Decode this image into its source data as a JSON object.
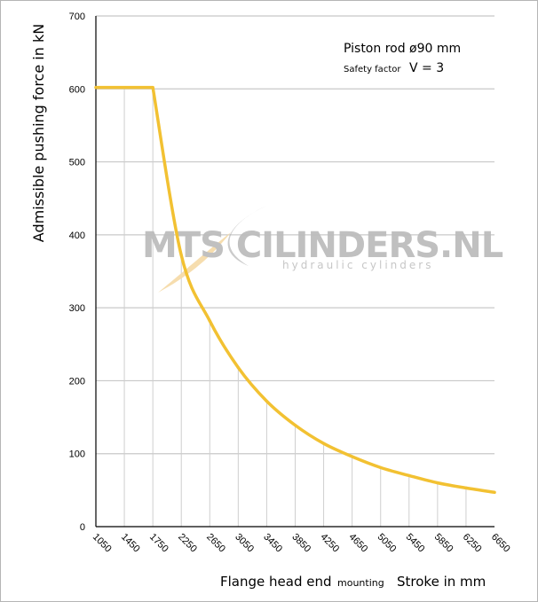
{
  "chart_data": {
    "type": "line",
    "ylabel": "Admissible  pushing  force in kN",
    "xlabel_main": "Flange head end",
    "xlabel_small": "mounting",
    "xlabel_right": "Stroke in mm",
    "annotation_title": "Piston rod ø90 mm",
    "annotation_factor_label": "Safety factor",
    "annotation_factor_value": "V = 3",
    "watermark": "MTS CILINDERS.NL",
    "watermark_sub": "hydraulic  cylinders",
    "ylim": [
      0,
      700
    ],
    "yticks": [
      0,
      100,
      200,
      300,
      400,
      500,
      600,
      700
    ],
    "categories": [
      "1050",
      "1450",
      "1750",
      "2250",
      "2650",
      "3050",
      "3450",
      "3850",
      "4250",
      "4650",
      "5050",
      "5450",
      "5850",
      "6250",
      "6650"
    ],
    "grid": true,
    "line_color": "#f2c132",
    "series": [
      {
        "values": [
          602,
          602,
          602,
          372,
          282,
          218,
          172,
          139,
          114,
          96,
          81,
          70,
          60,
          53,
          47
        ]
      }
    ]
  }
}
